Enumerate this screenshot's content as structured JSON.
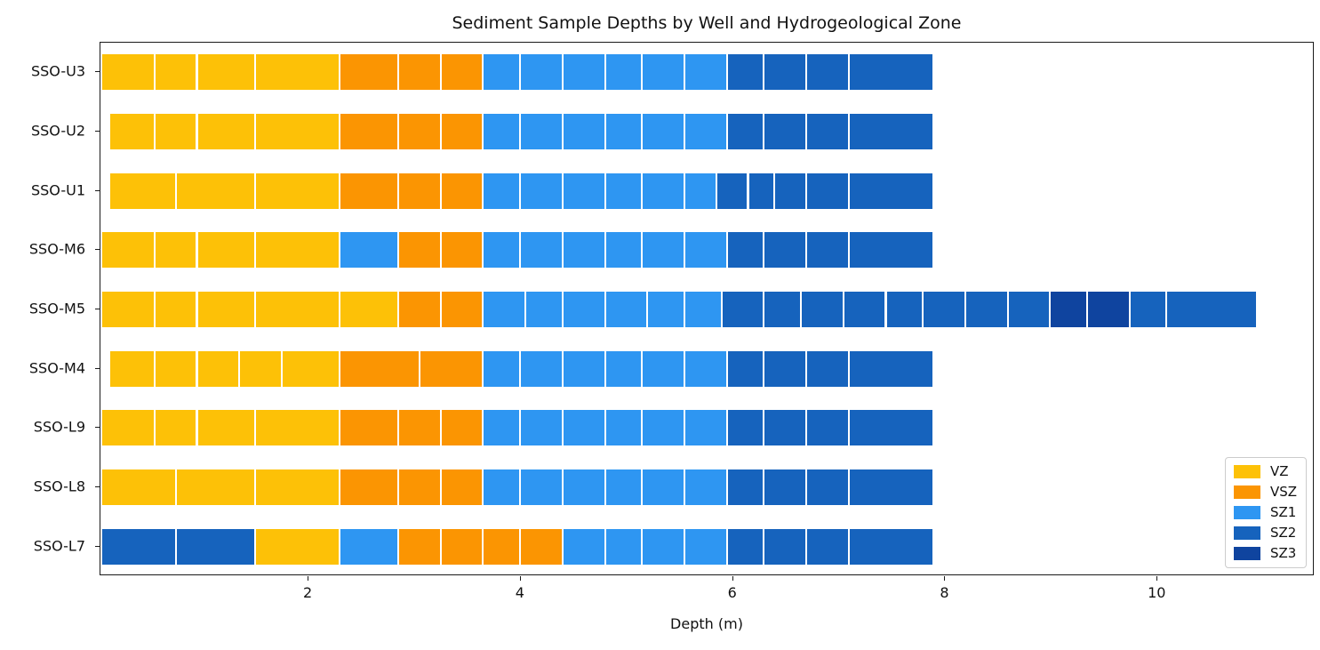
{
  "chart_data": {
    "type": "bar",
    "orientation": "horizontal",
    "stacked": true,
    "title": "Sediment Sample Depths by Well and Hydrogeological Zone",
    "xlabel": "Depth (m)",
    "ylabel": "",
    "xlim": [
      0.04,
      11.48
    ],
    "xticks": [
      2,
      4,
      6,
      8,
      10
    ],
    "grid": false,
    "legend_position": "lower right",
    "zones": [
      {
        "name": "VZ",
        "color": "#fdc107"
      },
      {
        "name": "VSZ",
        "color": "#fb9502"
      },
      {
        "name": "SZ1",
        "color": "#2e96f2"
      },
      {
        "name": "SZ2",
        "color": "#1663bd"
      },
      {
        "name": "SZ3",
        "color": "#0f449f"
      }
    ],
    "wells": [
      {
        "label": "SSO-U3",
        "segments": [
          [
            0.05,
            0.55,
            "VZ"
          ],
          [
            0.55,
            0.95,
            "VZ"
          ],
          [
            0.95,
            1.5,
            "VZ"
          ],
          [
            1.5,
            2.3,
            "VZ"
          ],
          [
            2.3,
            2.85,
            "VSZ"
          ],
          [
            2.85,
            3.25,
            "VSZ"
          ],
          [
            3.25,
            3.65,
            "VSZ"
          ],
          [
            3.65,
            4.0,
            "SZ1"
          ],
          [
            4.0,
            4.4,
            "SZ1"
          ],
          [
            4.4,
            4.8,
            "SZ1"
          ],
          [
            4.8,
            5.15,
            "SZ1"
          ],
          [
            5.15,
            5.55,
            "SZ1"
          ],
          [
            5.55,
            5.95,
            "SZ1"
          ],
          [
            5.95,
            6.3,
            "SZ2"
          ],
          [
            6.3,
            6.7,
            "SZ2"
          ],
          [
            6.7,
            7.1,
            "SZ2"
          ],
          [
            7.1,
            7.9,
            "SZ2"
          ]
        ]
      },
      {
        "label": "SSO-U2",
        "segments": [
          [
            0.12,
            0.55,
            "VZ"
          ],
          [
            0.55,
            0.95,
            "VZ"
          ],
          [
            0.95,
            1.5,
            "VZ"
          ],
          [
            1.5,
            2.3,
            "VZ"
          ],
          [
            2.3,
            2.85,
            "VSZ"
          ],
          [
            2.85,
            3.25,
            "VSZ"
          ],
          [
            3.25,
            3.65,
            "VSZ"
          ],
          [
            3.65,
            4.0,
            "SZ1"
          ],
          [
            4.0,
            4.4,
            "SZ1"
          ],
          [
            4.4,
            4.8,
            "SZ1"
          ],
          [
            4.8,
            5.15,
            "SZ1"
          ],
          [
            5.15,
            5.55,
            "SZ1"
          ],
          [
            5.55,
            5.95,
            "SZ1"
          ],
          [
            5.95,
            6.3,
            "SZ2"
          ],
          [
            6.3,
            6.7,
            "SZ2"
          ],
          [
            6.7,
            7.1,
            "SZ2"
          ],
          [
            7.1,
            7.9,
            "SZ2"
          ]
        ]
      },
      {
        "label": "SSO-U1",
        "segments": [
          [
            0.12,
            0.75,
            "VZ"
          ],
          [
            0.75,
            1.5,
            "VZ"
          ],
          [
            1.5,
            2.3,
            "VZ"
          ],
          [
            2.3,
            2.85,
            "VSZ"
          ],
          [
            2.85,
            3.25,
            "VSZ"
          ],
          [
            3.25,
            3.65,
            "VSZ"
          ],
          [
            3.65,
            4.0,
            "SZ1"
          ],
          [
            4.0,
            4.4,
            "SZ1"
          ],
          [
            4.4,
            4.8,
            "SZ1"
          ],
          [
            4.8,
            5.15,
            "SZ1"
          ],
          [
            5.15,
            5.55,
            "SZ1"
          ],
          [
            5.55,
            5.85,
            "SZ1"
          ],
          [
            5.85,
            6.15,
            "SZ2"
          ],
          [
            6.15,
            6.4,
            "SZ2"
          ],
          [
            6.4,
            6.7,
            "SZ2"
          ],
          [
            6.7,
            7.1,
            "SZ2"
          ],
          [
            7.1,
            7.9,
            "SZ2"
          ]
        ]
      },
      {
        "label": "SSO-M6",
        "segments": [
          [
            0.05,
            0.55,
            "VZ"
          ],
          [
            0.55,
            0.95,
            "VZ"
          ],
          [
            0.95,
            1.5,
            "VZ"
          ],
          [
            1.5,
            2.3,
            "VZ"
          ],
          [
            2.3,
            2.85,
            "SZ1"
          ],
          [
            2.85,
            3.25,
            "VSZ"
          ],
          [
            3.25,
            3.65,
            "VSZ"
          ],
          [
            3.65,
            4.0,
            "SZ1"
          ],
          [
            4.0,
            4.4,
            "SZ1"
          ],
          [
            4.4,
            4.8,
            "SZ1"
          ],
          [
            4.8,
            5.15,
            "SZ1"
          ],
          [
            5.15,
            5.55,
            "SZ1"
          ],
          [
            5.55,
            5.95,
            "SZ1"
          ],
          [
            5.95,
            6.3,
            "SZ2"
          ],
          [
            6.3,
            6.7,
            "SZ2"
          ],
          [
            6.7,
            7.1,
            "SZ2"
          ],
          [
            7.1,
            7.9,
            "SZ2"
          ]
        ]
      },
      {
        "label": "SSO-M5",
        "segments": [
          [
            0.05,
            0.55,
            "VZ"
          ],
          [
            0.55,
            0.95,
            "VZ"
          ],
          [
            0.95,
            1.5,
            "VZ"
          ],
          [
            1.5,
            2.3,
            "VZ"
          ],
          [
            2.3,
            2.85,
            "VZ"
          ],
          [
            2.85,
            3.25,
            "VSZ"
          ],
          [
            3.25,
            3.65,
            "VSZ"
          ],
          [
            3.65,
            4.05,
            "SZ1"
          ],
          [
            4.05,
            4.4,
            "SZ1"
          ],
          [
            4.4,
            4.8,
            "SZ1"
          ],
          [
            4.8,
            5.2,
            "SZ1"
          ],
          [
            5.2,
            5.55,
            "SZ1"
          ],
          [
            5.55,
            5.9,
            "SZ1"
          ],
          [
            5.9,
            6.3,
            "SZ2"
          ],
          [
            6.3,
            6.65,
            "SZ2"
          ],
          [
            6.65,
            7.05,
            "SZ2"
          ],
          [
            7.05,
            7.45,
            "SZ2"
          ],
          [
            7.45,
            7.8,
            "SZ2"
          ],
          [
            7.8,
            8.2,
            "SZ2"
          ],
          [
            8.2,
            8.6,
            "SZ2"
          ],
          [
            8.6,
            9.0,
            "SZ2"
          ],
          [
            9.0,
            9.35,
            "SZ3"
          ],
          [
            9.35,
            9.75,
            "SZ3"
          ],
          [
            9.75,
            10.1,
            "SZ2"
          ],
          [
            10.1,
            10.95,
            "SZ2"
          ]
        ]
      },
      {
        "label": "SSO-M4",
        "segments": [
          [
            0.12,
            0.55,
            "VZ"
          ],
          [
            0.55,
            0.95,
            "VZ"
          ],
          [
            0.95,
            1.35,
            "VZ"
          ],
          [
            1.35,
            1.75,
            "VZ"
          ],
          [
            1.75,
            2.3,
            "VZ"
          ],
          [
            2.3,
            3.05,
            "VSZ"
          ],
          [
            3.05,
            3.65,
            "VSZ"
          ],
          [
            3.65,
            4.0,
            "SZ1"
          ],
          [
            4.0,
            4.4,
            "SZ1"
          ],
          [
            4.4,
            4.8,
            "SZ1"
          ],
          [
            4.8,
            5.15,
            "SZ1"
          ],
          [
            5.15,
            5.55,
            "SZ1"
          ],
          [
            5.55,
            5.95,
            "SZ1"
          ],
          [
            5.95,
            6.3,
            "SZ2"
          ],
          [
            6.3,
            6.7,
            "SZ2"
          ],
          [
            6.7,
            7.1,
            "SZ2"
          ],
          [
            7.1,
            7.9,
            "SZ2"
          ]
        ]
      },
      {
        "label": "SSO-L9",
        "segments": [
          [
            0.05,
            0.55,
            "VZ"
          ],
          [
            0.55,
            0.95,
            "VZ"
          ],
          [
            0.95,
            1.5,
            "VZ"
          ],
          [
            1.5,
            2.3,
            "VZ"
          ],
          [
            2.3,
            2.85,
            "VSZ"
          ],
          [
            2.85,
            3.25,
            "VSZ"
          ],
          [
            3.25,
            3.65,
            "VSZ"
          ],
          [
            3.65,
            4.0,
            "SZ1"
          ],
          [
            4.0,
            4.4,
            "SZ1"
          ],
          [
            4.4,
            4.8,
            "SZ1"
          ],
          [
            4.8,
            5.15,
            "SZ1"
          ],
          [
            5.15,
            5.55,
            "SZ1"
          ],
          [
            5.55,
            5.95,
            "SZ1"
          ],
          [
            5.95,
            6.3,
            "SZ2"
          ],
          [
            6.3,
            6.7,
            "SZ2"
          ],
          [
            6.7,
            7.1,
            "SZ2"
          ],
          [
            7.1,
            7.9,
            "SZ2"
          ]
        ]
      },
      {
        "label": "SSO-L8",
        "segments": [
          [
            0.05,
            0.75,
            "VZ"
          ],
          [
            0.75,
            1.5,
            "VZ"
          ],
          [
            1.5,
            2.3,
            "VZ"
          ],
          [
            2.3,
            2.85,
            "VSZ"
          ],
          [
            2.85,
            3.25,
            "VSZ"
          ],
          [
            3.25,
            3.65,
            "VSZ"
          ],
          [
            3.65,
            4.0,
            "SZ1"
          ],
          [
            4.0,
            4.4,
            "SZ1"
          ],
          [
            4.4,
            4.8,
            "SZ1"
          ],
          [
            4.8,
            5.15,
            "SZ1"
          ],
          [
            5.15,
            5.55,
            "SZ1"
          ],
          [
            5.55,
            5.95,
            "SZ1"
          ],
          [
            5.95,
            6.3,
            "SZ2"
          ],
          [
            6.3,
            6.7,
            "SZ2"
          ],
          [
            6.7,
            7.1,
            "SZ2"
          ],
          [
            7.1,
            7.9,
            "SZ2"
          ]
        ]
      },
      {
        "label": "SSO-L7",
        "segments": [
          [
            0.05,
            0.75,
            "SZ2"
          ],
          [
            0.75,
            1.5,
            "SZ2"
          ],
          [
            1.5,
            2.3,
            "VZ"
          ],
          [
            2.3,
            2.85,
            "SZ1"
          ],
          [
            2.85,
            3.25,
            "VSZ"
          ],
          [
            3.25,
            3.65,
            "VSZ"
          ],
          [
            3.65,
            4.0,
            "VSZ"
          ],
          [
            4.0,
            4.4,
            "VSZ"
          ],
          [
            4.4,
            4.8,
            "SZ1"
          ],
          [
            4.8,
            5.15,
            "SZ1"
          ],
          [
            5.15,
            5.55,
            "SZ1"
          ],
          [
            5.55,
            5.95,
            "SZ1"
          ],
          [
            5.95,
            6.3,
            "SZ2"
          ],
          [
            6.3,
            6.7,
            "SZ2"
          ],
          [
            6.7,
            7.1,
            "SZ2"
          ],
          [
            7.1,
            7.9,
            "SZ2"
          ]
        ]
      }
    ]
  }
}
